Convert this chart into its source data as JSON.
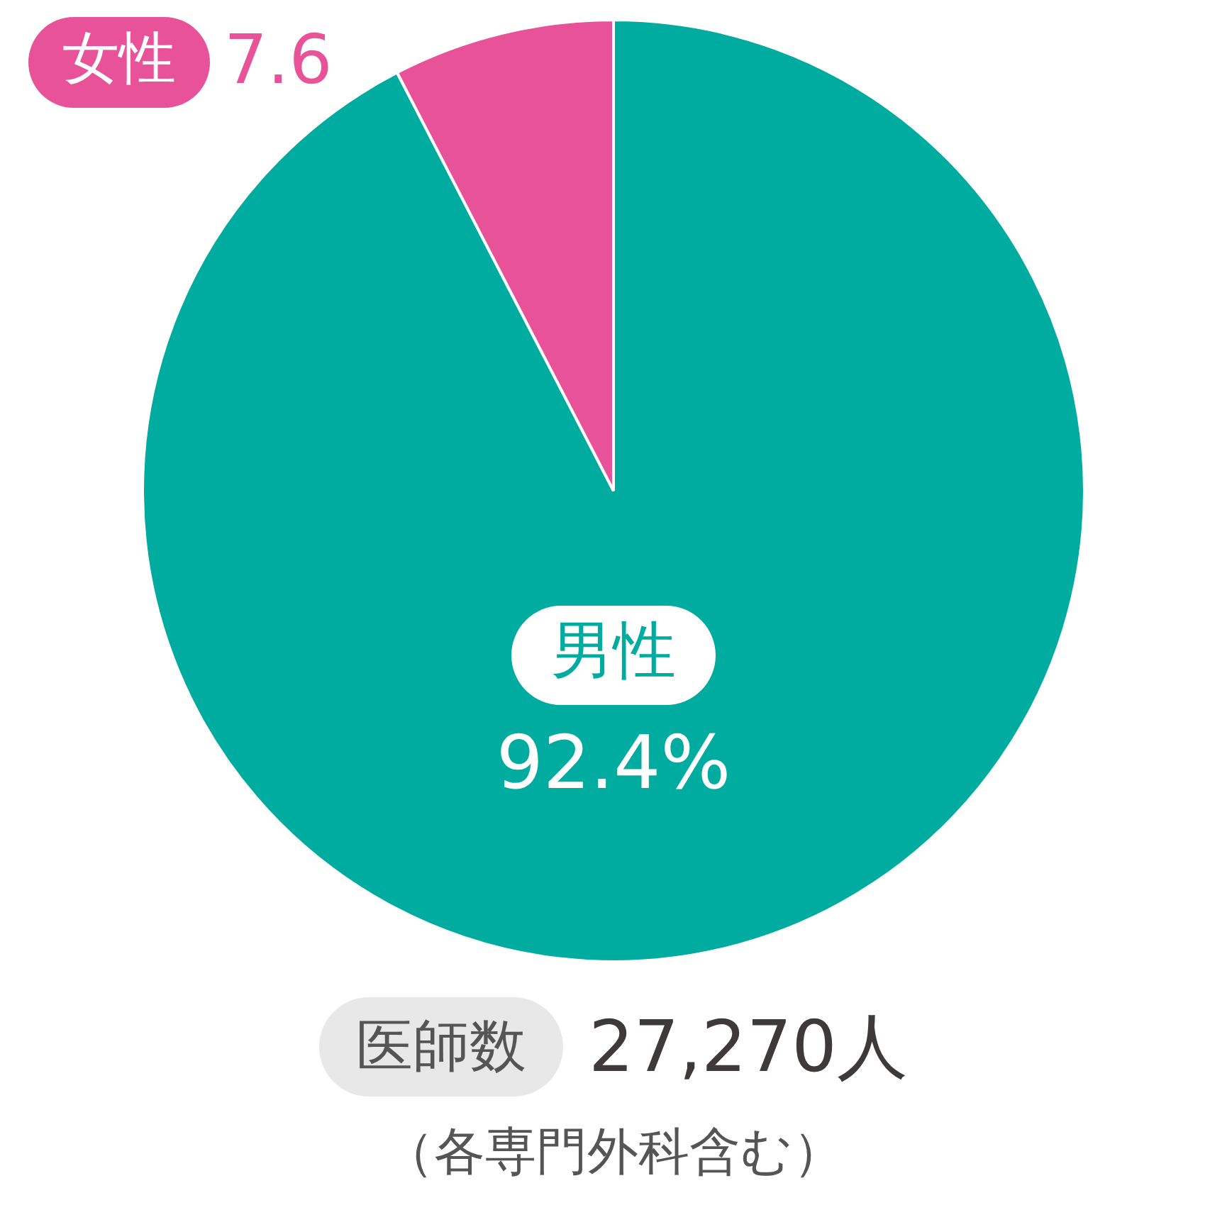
{
  "chart_data": {
    "type": "pie",
    "categories": [
      "男性",
      "女性"
    ],
    "values": [
      92.4,
      7.6
    ],
    "colors": [
      "#00aca0",
      "#e85299"
    ],
    "value_labels": [
      "92.4%",
      "7.6"
    ],
    "legend": false,
    "annotations": [
      "医師数",
      "27,270人",
      "（各専門外科含む）"
    ]
  }
}
